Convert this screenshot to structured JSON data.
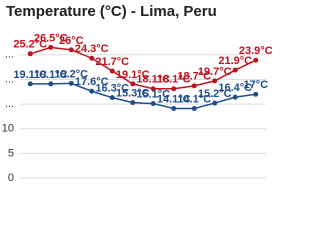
{
  "chart_data": {
    "type": "line",
    "title": "Temperature (°C) - Lima, Peru",
    "series": [
      {
        "name": null,
        "color": "#c0121f",
        "values": [
          25.2,
          26.5,
          26,
          24.3,
          21.7,
          19.1,
          18.1,
          18.1,
          18.7,
          19.7,
          21.9,
          23.9
        ],
        "value_labels": [
          "25.2°C",
          "26.5°C",
          "26°C",
          "24.3°C",
          "21.7°C",
          "19.1°C",
          "18.1°C",
          "18.1°C",
          "18.7°C",
          "19.7°C",
          "21.9°C",
          "23.9°C"
        ]
      },
      {
        "name": null,
        "color": "#1f4e8c",
        "values": [
          19.1,
          19.1,
          19.2,
          17.6,
          16.3,
          15.3,
          15.1,
          14.1,
          14.1,
          15.2,
          16.4,
          17
        ],
        "value_labels": [
          "19.1°C",
          "19.1°C",
          "19.2°C",
          "17.6°C",
          "16.3°C",
          "15.3°C",
          "15.1°C",
          "14.1°C",
          "14.1°C",
          "15.2°C",
          "16.4°C",
          "17°C"
        ]
      }
    ],
    "ylim": [
      0,
      28
    ],
    "yticks": [
      0,
      5,
      10,
      {
        "value": 15,
        "label": "..."
      },
      {
        "value": 20,
        "label": "..."
      },
      {
        "value": 25,
        "label": "..."
      }
    ],
    "grid": true
  }
}
